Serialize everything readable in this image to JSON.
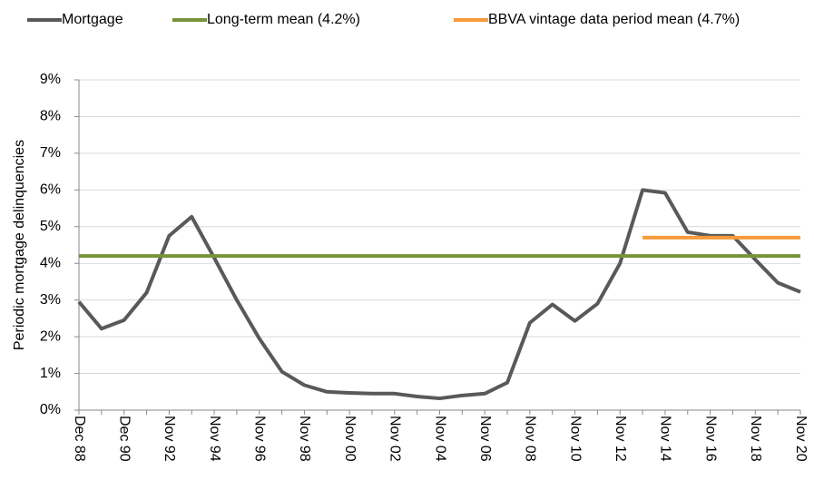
{
  "chart_data": {
    "type": "line",
    "y_label": "Periodic mortgage delinquencies",
    "categories": [
      "Dec 88",
      null,
      "Dec 90",
      null,
      "Nov 92",
      null,
      "Nov 94",
      null,
      "Nov 96",
      null,
      "Nov 98",
      null,
      "Nov 00",
      null,
      "Nov 02",
      null,
      "Nov 04",
      null,
      "Nov 06",
      null,
      "Nov 08",
      null,
      "Nov 10",
      null,
      "Nov 12",
      null,
      "Nov 14",
      null,
      "Nov 16",
      null,
      "Nov 18",
      null,
      "Nov 20"
    ],
    "series": [
      {
        "name": "Mortgage",
        "color": "#595959",
        "width": 4,
        "values": [
          2.95,
          2.22,
          2.45,
          3.2,
          4.75,
          5.27,
          4.15,
          3.0,
          1.95,
          1.05,
          0.68,
          0.5,
          0.47,
          0.45,
          0.45,
          0.37,
          0.32,
          0.4,
          0.45,
          0.75,
          2.38,
          2.88,
          2.43,
          2.9,
          4.0,
          6.0,
          5.92,
          4.85,
          4.75,
          4.75,
          4.1,
          3.47,
          3.22
        ]
      },
      {
        "name": "Long-term mean (4.2%)",
        "color": "#77933c",
        "width": 4,
        "values": [
          4.2,
          4.2,
          4.2,
          4.2,
          4.2,
          4.2,
          4.2,
          4.2,
          4.2,
          4.2,
          4.2,
          4.2,
          4.2,
          4.2,
          4.2,
          4.2,
          4.2,
          4.2,
          4.2,
          4.2,
          4.2,
          4.2,
          4.2,
          4.2,
          4.2,
          4.2,
          4.2,
          4.2,
          4.2,
          4.2,
          4.2,
          4.2,
          4.2
        ]
      },
      {
        "name": "BBVA vintage data period mean (4.7%)",
        "color": "#f79a3a",
        "width": 4,
        "values": [
          null,
          null,
          null,
          null,
          null,
          null,
          null,
          null,
          null,
          null,
          null,
          null,
          null,
          null,
          null,
          null,
          null,
          null,
          null,
          null,
          null,
          null,
          null,
          null,
          null,
          4.7,
          4.7,
          4.7,
          4.7,
          4.7,
          4.7,
          4.7,
          4.7
        ]
      }
    ],
    "ylim": [
      0,
      9
    ],
    "yticks": [
      {
        "value": 0,
        "label": "0%"
      },
      {
        "value": 1,
        "label": "1%"
      },
      {
        "value": 2,
        "label": "2%"
      },
      {
        "value": 3,
        "label": "3%"
      },
      {
        "value": 4,
        "label": "4%"
      },
      {
        "value": 5,
        "label": "5%"
      },
      {
        "value": 6,
        "label": "6%"
      },
      {
        "value": 7,
        "label": "7%"
      },
      {
        "value": 8,
        "label": "8%"
      },
      {
        "value": 9,
        "label": "9%"
      }
    ],
    "grid": true,
    "legend": "top"
  }
}
